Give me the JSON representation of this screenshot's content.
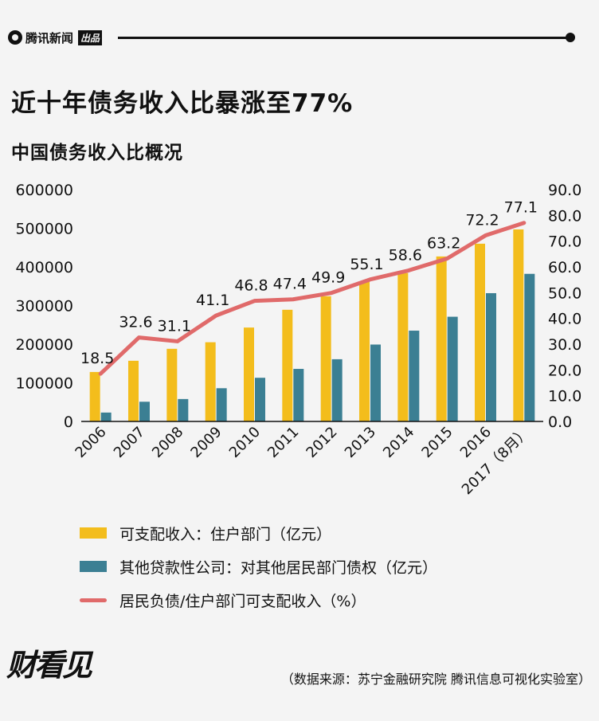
{
  "header": {
    "brand": "腾讯新闻",
    "brand_tag": "出品"
  },
  "title": "近十年债务收入比暴涨至77%",
  "subtitle": "中国债务收入比概况",
  "colors": {
    "income": "#f3bd1c",
    "loans": "#3b7f93",
    "ratio": "#e06a6a",
    "text": "#111111",
    "background": "#f4f4f4"
  },
  "chart_data": {
    "type": "bar",
    "categories": [
      "2006",
      "2007",
      "2008",
      "2009",
      "2010",
      "2011",
      "2012",
      "2013",
      "2014",
      "2015",
      "2016",
      "2017（8月）"
    ],
    "series": [
      {
        "name": "可支配收入：住户部门（亿元）",
        "type": "bar",
        "axis": "left",
        "values": [
          128000,
          157000,
          188000,
          205000,
          243000,
          289000,
          324000,
          362000,
          384000,
          427000,
          460000,
          497000
        ]
      },
      {
        "name": "其他贷款性公司：对其他居民部门债权（亿元）",
        "type": "bar",
        "axis": "left",
        "values": [
          23000,
          51000,
          58000,
          86000,
          113000,
          136000,
          161000,
          199000,
          235000,
          271000,
          332000,
          382000
        ]
      },
      {
        "name": "居民负债/住户部门可支配收入（%）",
        "type": "line",
        "axis": "right",
        "values": [
          18.5,
          32.6,
          31.1,
          41.1,
          46.8,
          47.4,
          49.9,
          55.1,
          58.6,
          63.2,
          72.2,
          77.1
        ],
        "labels": [
          "18.5",
          "32.6",
          "31.1",
          "41.1",
          "46.8",
          "47.4",
          "49.9",
          "55.1",
          "58.6",
          "63.2",
          "72.2",
          "77.1"
        ]
      }
    ],
    "y_left": {
      "ylim": [
        0,
        600000
      ],
      "ticks": [
        "0",
        "100000",
        "200000",
        "300000",
        "400000",
        "500000",
        "600000"
      ]
    },
    "y_right": {
      "ylim": [
        0,
        90
      ],
      "ticks": [
        "0.0",
        "10.0",
        "20.0",
        "30.0",
        "40.0",
        "50.0",
        "60.0",
        "70.0",
        "80.0",
        "90.0"
      ]
    },
    "grid": false,
    "legend_position": "bottom"
  },
  "legend": [
    {
      "label": "可支配收入：住户部门（亿元）",
      "style": "bar",
      "color": "#f3bd1c"
    },
    {
      "label": "其他贷款性公司：对其他居民部门债权（亿元）",
      "style": "bar",
      "color": "#3b7f93"
    },
    {
      "label": "居民负债/住户部门可支配收入（%）",
      "style": "line",
      "color": "#e06a6a"
    }
  ],
  "footer": {
    "logo_text": "财看见",
    "source": "（数据来源：苏宁金融研究院 腾讯信息可视化实验室）"
  }
}
